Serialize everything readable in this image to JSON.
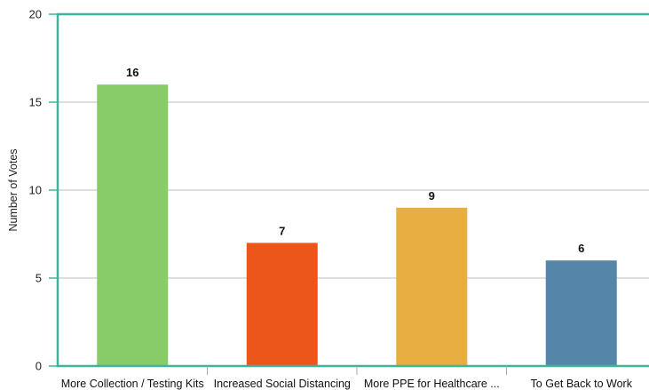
{
  "chart_data": {
    "type": "bar",
    "title": "",
    "xlabel": "",
    "ylabel": "Number of Votes",
    "categories": [
      "More Collection / Testing Kits",
      "Increased Social Distancing",
      "More PPE for Healthcare ...",
      "To Get Back to Work"
    ],
    "values": [
      16,
      7,
      9,
      6
    ],
    "colors": [
      "#88cc6a",
      "#ec561b",
      "#e8ae42",
      "#5586aa"
    ],
    "ylim": [
      0,
      20
    ],
    "yticks": [
      0,
      5,
      10,
      15,
      20
    ],
    "grid": true,
    "legend": "none",
    "frame_color": "#3cb59a",
    "grid_color": "#bdbdbd"
  }
}
